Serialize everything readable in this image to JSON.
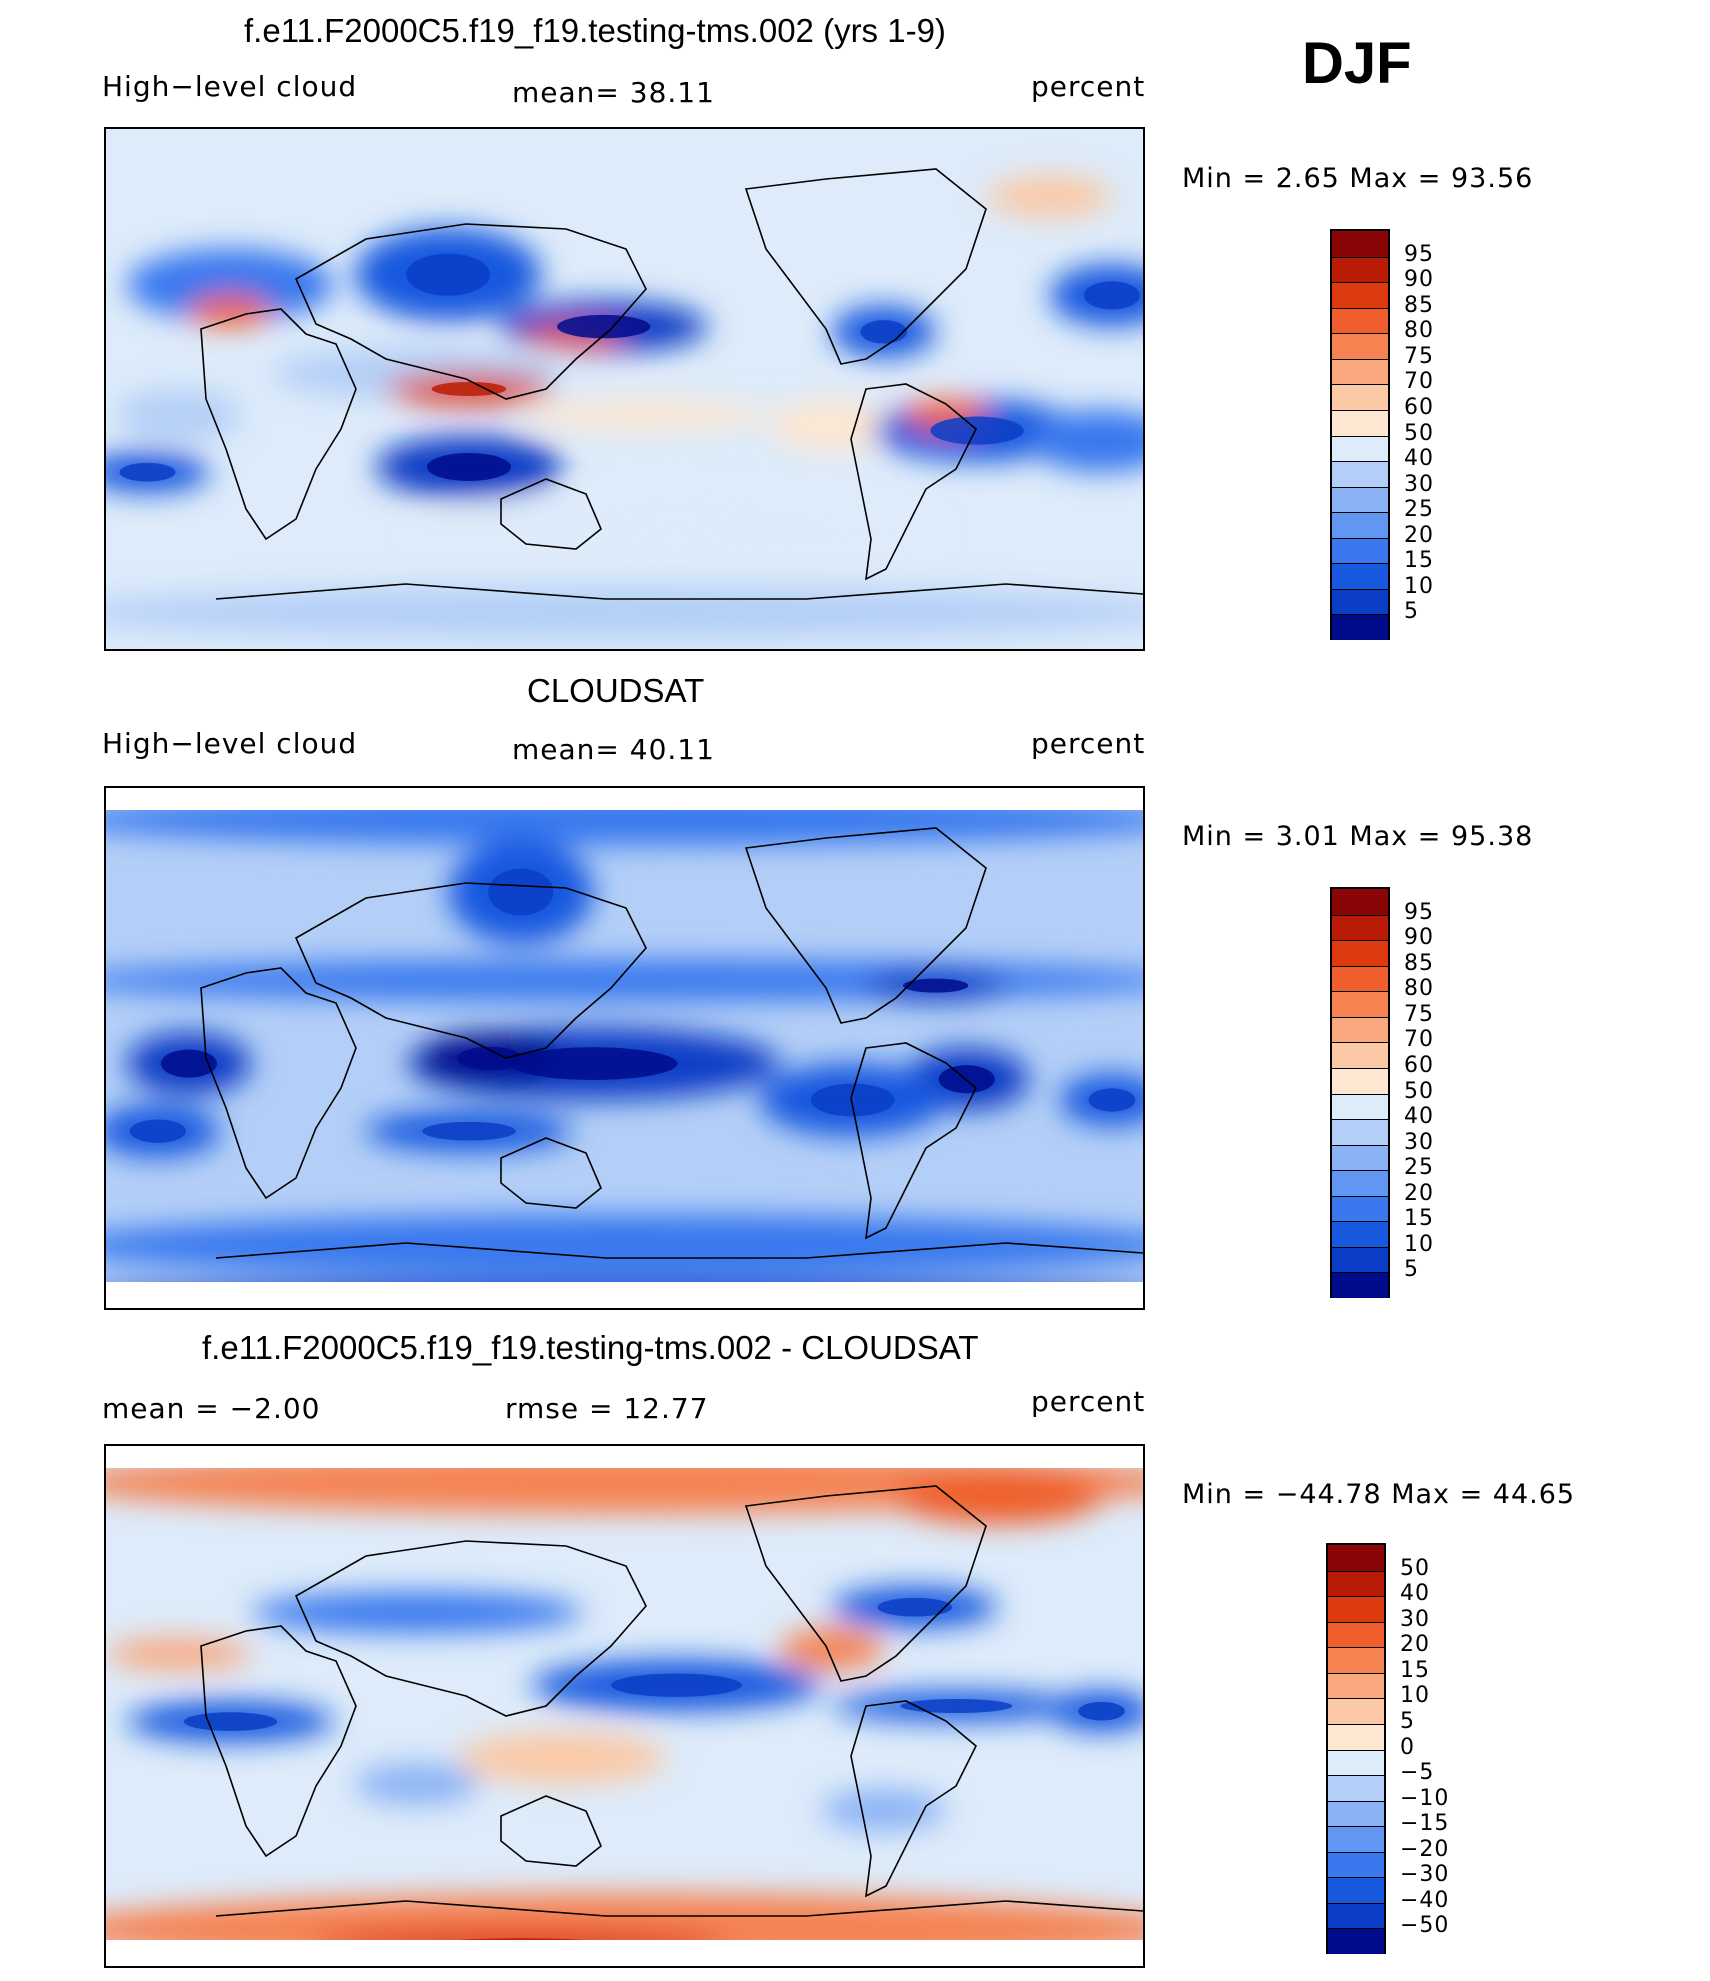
{
  "season": "DJF",
  "palette_16": [
    "#000c8c",
    "#0725a8",
    "#0b3ec6",
    "#1759df",
    "#3978ee",
    "#6196f2",
    "#8ab2f4",
    "#b4cff7",
    "#ddebfa",
    "#fde7d2",
    "#fbc9a6",
    "#f9a77c",
    "#f58352",
    "#ef5e2c",
    "#dd3a10",
    "#b81c06",
    "#8a0505"
  ],
  "chart_data": [
    {
      "type": "heatmap",
      "title": "f.e11.F2000C5.f19_f19.testing-tms.002 (yrs 1-9)",
      "left_label": "High−level cloud",
      "center_label": "mean=   38.11",
      "right_label": "percent",
      "minmax": "Min =    2.65  Max =    93.56",
      "min": 2.65,
      "max": 93.56,
      "mean": 38.11,
      "levels": [
        "95",
        "90",
        "85",
        "80",
        "75",
        "70",
        "60",
        "50",
        "40",
        "30",
        "25",
        "20",
        "15",
        "10",
        "5"
      ],
      "colors": [
        "#8a0505",
        "#b81c06",
        "#dd3a10",
        "#ef5e2c",
        "#f58352",
        "#f9a77c",
        "#fbc9a6",
        "#fde7d2",
        "#ddebfa",
        "#b4cff7",
        "#8ab2f4",
        "#6196f2",
        "#3978ee",
        "#1759df",
        "#0b3ec6",
        "#000c8c"
      ],
      "blobs": [
        {
          "cx": 0.33,
          "cy": 0.28,
          "rx": 0.09,
          "ry": 0.09,
          "c": 13
        },
        {
          "cx": 0.48,
          "cy": 0.38,
          "rx": 0.1,
          "ry": 0.05,
          "c": 14
        },
        {
          "cx": 0.12,
          "cy": 0.3,
          "rx": 0.1,
          "ry": 0.07,
          "c": 12
        },
        {
          "cx": 0.97,
          "cy": 0.32,
          "rx": 0.06,
          "ry": 0.06,
          "c": 13
        },
        {
          "cx": 0.75,
          "cy": 0.39,
          "rx": 0.05,
          "ry": 0.05,
          "c": 13
        },
        {
          "cx": 0.52,
          "cy": 0.55,
          "rx": 0.12,
          "ry": 0.03,
          "c": 7
        },
        {
          "cx": 0.3,
          "cy": 0.47,
          "rx": 0.14,
          "ry": 0.05,
          "c": 9
        },
        {
          "cx": 0.07,
          "cy": 0.55,
          "rx": 0.06,
          "ry": 0.05,
          "c": 9
        },
        {
          "cx": 0.35,
          "cy": 0.65,
          "rx": 0.09,
          "ry": 0.06,
          "c": 14
        },
        {
          "cx": 0.7,
          "cy": 0.57,
          "rx": 0.06,
          "ry": 0.05,
          "c": 7
        },
        {
          "cx": 0.84,
          "cy": 0.58,
          "rx": 0.1,
          "ry": 0.06,
          "c": 13
        },
        {
          "cx": 0.96,
          "cy": 0.6,
          "rx": 0.07,
          "ry": 0.06,
          "c": 12
        },
        {
          "cx": 0.04,
          "cy": 0.66,
          "rx": 0.06,
          "ry": 0.04,
          "c": 13
        },
        {
          "cx": 0.91,
          "cy": 0.13,
          "rx": 0.06,
          "ry": 0.04,
          "c": 6
        },
        {
          "cx": 0.12,
          "cy": 0.35,
          "rx": 0.04,
          "ry": 0.03,
          "c": 3
        },
        {
          "cx": 0.35,
          "cy": 0.5,
          "rx": 0.08,
          "ry": 0.03,
          "c": 2
        },
        {
          "cx": 0.45,
          "cy": 0.4,
          "rx": 0.05,
          "ry": 0.02,
          "c": 3
        },
        {
          "cx": 0.81,
          "cy": 0.55,
          "rx": 0.04,
          "ry": 0.03,
          "c": 3
        },
        {
          "cx": 0.55,
          "cy": 0.77,
          "rx": 0.25,
          "ry": 0.06,
          "c": 8
        },
        {
          "cx": 0.5,
          "cy": 0.93,
          "rx": 0.55,
          "ry": 0.05,
          "c": 9
        }
      ]
    },
    {
      "type": "heatmap",
      "title": "CLOUDSAT",
      "left_label": "High−level cloud",
      "center_label": "mean=   40.11",
      "right_label": "percent",
      "minmax": "Min =    3.01  Max =    95.38",
      "min": 3.01,
      "max": 95.38,
      "mean": 40.11,
      "levels": [
        "95",
        "90",
        "85",
        "80",
        "75",
        "70",
        "60",
        "50",
        "40",
        "30",
        "25",
        "20",
        "15",
        "10",
        "5"
      ],
      "colors": [
        "#8a0505",
        "#b81c06",
        "#dd3a10",
        "#ef5e2c",
        "#f58352",
        "#f9a77c",
        "#fbc9a6",
        "#fde7d2",
        "#ddebfa",
        "#b4cff7",
        "#8ab2f4",
        "#6196f2",
        "#3978ee",
        "#1759df",
        "#0b3ec6",
        "#000c8c"
      ],
      "blobs": [
        {
          "cx": 0.5,
          "cy": 0.06,
          "rx": 0.55,
          "ry": 0.05,
          "c": 12
        },
        {
          "cx": 0.4,
          "cy": 0.2,
          "rx": 0.07,
          "ry": 0.1,
          "c": 13
        },
        {
          "cx": 0.5,
          "cy": 0.37,
          "rx": 0.55,
          "ry": 0.04,
          "c": 12
        },
        {
          "cx": 0.8,
          "cy": 0.38,
          "rx": 0.07,
          "ry": 0.03,
          "c": 14
        },
        {
          "cx": 0.47,
          "cy": 0.53,
          "rx": 0.18,
          "ry": 0.07,
          "c": 14
        },
        {
          "cx": 0.37,
          "cy": 0.52,
          "rx": 0.07,
          "ry": 0.05,
          "c": 15
        },
        {
          "cx": 0.08,
          "cy": 0.53,
          "rx": 0.06,
          "ry": 0.06,
          "c": 14
        },
        {
          "cx": 0.83,
          "cy": 0.56,
          "rx": 0.06,
          "ry": 0.06,
          "c": 14
        },
        {
          "cx": 0.72,
          "cy": 0.6,
          "rx": 0.09,
          "ry": 0.07,
          "c": 13
        },
        {
          "cx": 0.97,
          "cy": 0.6,
          "rx": 0.05,
          "ry": 0.05,
          "c": 13
        },
        {
          "cx": 0.35,
          "cy": 0.66,
          "rx": 0.1,
          "ry": 0.04,
          "c": 13
        },
        {
          "cx": 0.05,
          "cy": 0.66,
          "rx": 0.06,
          "ry": 0.05,
          "c": 13
        },
        {
          "cx": 0.5,
          "cy": 0.88,
          "rx": 0.55,
          "ry": 0.06,
          "c": 12
        },
        {
          "cx": 0.5,
          "cy": 0.98,
          "rx": 0.55,
          "ry": 0.03,
          "c": 14
        }
      ]
    },
    {
      "type": "heatmap",
      "title": "f.e11.F2000C5.f19_f19.testing-tms.002 - CLOUDSAT",
      "left_label": "mean =    −2.00",
      "center_label": "rmse =    12.77",
      "right_label": "percent",
      "minmax": "Min = −44.78  Max =    44.65",
      "min": -44.78,
      "max": 44.65,
      "mean": -2.0,
      "rmse": 12.77,
      "levels": [
        "50",
        "40",
        "30",
        "20",
        "15",
        "10",
        "5",
        "0",
        "−5",
        "−10",
        "−15",
        "−20",
        "−30",
        "−40",
        "−50"
      ],
      "colors": [
        "#8a0505",
        "#b81c06",
        "#dd3a10",
        "#ef5e2c",
        "#f58352",
        "#f9a77c",
        "#fbc9a6",
        "#fde7d2",
        "#ddebfa",
        "#b4cff7",
        "#8ab2f4",
        "#6196f2",
        "#3978ee",
        "#1759df",
        "#0b3ec6",
        "#000c8c"
      ],
      "blobs": [
        {
          "cx": 0.5,
          "cy": 0.07,
          "rx": 0.55,
          "ry": 0.06,
          "c": 4
        },
        {
          "cx": 0.86,
          "cy": 0.1,
          "rx": 0.1,
          "ry": 0.05,
          "c": 3
        },
        {
          "cx": 0.3,
          "cy": 0.32,
          "rx": 0.16,
          "ry": 0.04,
          "c": 12
        },
        {
          "cx": 0.78,
          "cy": 0.31,
          "rx": 0.08,
          "ry": 0.04,
          "c": 13
        },
        {
          "cx": 0.07,
          "cy": 0.4,
          "rx": 0.07,
          "ry": 0.03,
          "c": 5
        },
        {
          "cx": 0.7,
          "cy": 0.39,
          "rx": 0.05,
          "ry": 0.04,
          "c": 4
        },
        {
          "cx": 0.55,
          "cy": 0.46,
          "rx": 0.14,
          "ry": 0.05,
          "c": 13
        },
        {
          "cx": 0.82,
          "cy": 0.5,
          "rx": 0.12,
          "ry": 0.03,
          "c": 13
        },
        {
          "cx": 0.12,
          "cy": 0.53,
          "rx": 0.1,
          "ry": 0.04,
          "c": 13
        },
        {
          "cx": 0.96,
          "cy": 0.51,
          "rx": 0.05,
          "ry": 0.04,
          "c": 13
        },
        {
          "cx": 0.44,
          "cy": 0.6,
          "rx": 0.1,
          "ry": 0.05,
          "c": 6
        },
        {
          "cx": 0.3,
          "cy": 0.65,
          "rx": 0.06,
          "ry": 0.04,
          "c": 10
        },
        {
          "cx": 0.75,
          "cy": 0.7,
          "rx": 0.06,
          "ry": 0.04,
          "c": 10
        },
        {
          "cx": 0.5,
          "cy": 0.93,
          "rx": 0.55,
          "ry": 0.07,
          "c": 4
        },
        {
          "cx": 0.4,
          "cy": 0.96,
          "rx": 0.2,
          "ry": 0.03,
          "c": 2
        }
      ]
    }
  ]
}
